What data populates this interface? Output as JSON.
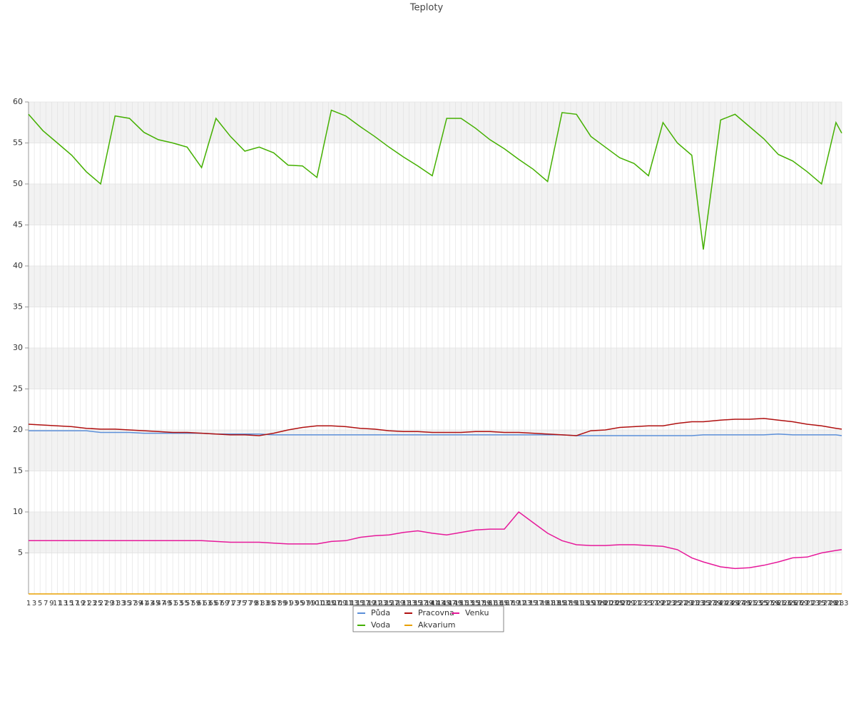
{
  "chart_data": {
    "type": "line",
    "title": "Teploty",
    "x": [
      1,
      6,
      11,
      16,
      21,
      26,
      31,
      36,
      41,
      46,
      51,
      56,
      61,
      66,
      71,
      76,
      81,
      86,
      91,
      96,
      101,
      106,
      111,
      116,
      121,
      126,
      131,
      136,
      141,
      146,
      151,
      156,
      161,
      166,
      171,
      176,
      181,
      186,
      191,
      196,
      201,
      206,
      211,
      216,
      221,
      226,
      231,
      235,
      241,
      246,
      251,
      256,
      261,
      266,
      271,
      276,
      281,
      283
    ],
    "series": [
      {
        "name": "Půda",
        "color": "#5b8fd9",
        "values": [
          19.9,
          19.9,
          19.9,
          19.9,
          19.9,
          19.7,
          19.7,
          19.7,
          19.6,
          19.6,
          19.6,
          19.6,
          19.6,
          19.5,
          19.5,
          19.5,
          19.5,
          19.4,
          19.4,
          19.4,
          19.4,
          19.4,
          19.4,
          19.4,
          19.4,
          19.4,
          19.4,
          19.4,
          19.4,
          19.4,
          19.4,
          19.4,
          19.4,
          19.4,
          19.4,
          19.4,
          19.4,
          19.4,
          19.3,
          19.3,
          19.3,
          19.3,
          19.3,
          19.3,
          19.3,
          19.3,
          19.3,
          19.4,
          19.4,
          19.4,
          19.4,
          19.4,
          19.5,
          19.4,
          19.4,
          19.4,
          19.4,
          19.3
        ]
      },
      {
        "name": "Voda",
        "color": "#44b000",
        "values": [
          58.5,
          56.5,
          55,
          53.5,
          51.5,
          50,
          58.3,
          58,
          56.3,
          55.4,
          55,
          54.5,
          52,
          58,
          55.8,
          54,
          54.5,
          53.8,
          52.3,
          52.2,
          50.8,
          59,
          58.3,
          57,
          55.8,
          54.5,
          53.3,
          52.2,
          51,
          58,
          58,
          56.8,
          55.4,
          54.3,
          53,
          51.8,
          50.3,
          58.7,
          58.5,
          55.8,
          54.5,
          53.2,
          52.5,
          51,
          57.5,
          55,
          53.5,
          42,
          57.8,
          58.5,
          57,
          55.5,
          53.6,
          52.8,
          51.5,
          50,
          57.5,
          56.2
        ]
      },
      {
        "name": "Pracovna",
        "color": "#b01010",
        "values": [
          20.7,
          20.6,
          20.5,
          20.4,
          20.2,
          20.1,
          20.1,
          20,
          19.9,
          19.8,
          19.7,
          19.7,
          19.6,
          19.5,
          19.4,
          19.4,
          19.3,
          19.6,
          20,
          20.3,
          20.5,
          20.5,
          20.4,
          20.2,
          20.1,
          19.9,
          19.8,
          19.8,
          19.7,
          19.7,
          19.7,
          19.8,
          19.8,
          19.7,
          19.7,
          19.6,
          19.5,
          19.4,
          19.3,
          19.9,
          20,
          20.3,
          20.4,
          20.5,
          20.5,
          20.8,
          21,
          21,
          21.2,
          21.3,
          21.3,
          21.4,
          21.2,
          21,
          20.7,
          20.5,
          20.2,
          20.1
        ]
      },
      {
        "name": "Akvarium",
        "color": "#e8a000",
        "values": [
          0,
          0,
          0,
          0,
          0,
          0,
          0,
          0,
          0,
          0,
          0,
          0,
          0,
          0,
          0,
          0,
          0,
          0,
          0,
          0,
          0,
          0,
          0,
          0,
          0,
          0,
          0,
          0,
          0,
          0,
          0,
          0,
          0,
          0,
          0,
          0,
          0,
          0,
          0,
          0,
          0,
          0,
          0,
          0,
          0,
          0,
          0,
          0,
          0,
          0,
          0,
          0,
          0,
          0,
          0,
          0,
          0,
          0
        ]
      },
      {
        "name": "Venku",
        "color": "#e6199a",
        "values": [
          6.5,
          6.5,
          6.5,
          6.5,
          6.5,
          6.5,
          6.5,
          6.5,
          6.5,
          6.5,
          6.5,
          6.5,
          6.5,
          6.4,
          6.3,
          6.3,
          6.3,
          6.2,
          6.1,
          6.1,
          6.1,
          6.4,
          6.5,
          6.9,
          7.1,
          7.2,
          7.5,
          7.7,
          7.4,
          7.2,
          7.5,
          7.8,
          7.9,
          7.9,
          10,
          8.7,
          7.4,
          6.5,
          6.0,
          5.9,
          5.9,
          6,
          6,
          5.9,
          5.8,
          5.4,
          4.4,
          3.9,
          3.3,
          3.1,
          3.2,
          3.5,
          3.9,
          4.4,
          4.5,
          5,
          5.3,
          5.4
        ]
      }
    ],
    "xlim": [
      1,
      283
    ],
    "xticks": [
      1,
      3,
      5,
      7,
      9,
      11,
      13,
      15,
      17,
      19,
      21,
      23,
      25,
      27,
      29,
      31,
      33,
      35,
      37,
      39,
      41,
      43,
      45,
      47,
      49,
      51,
      53,
      55,
      57,
      59,
      61,
      63,
      65,
      67,
      69,
      71,
      73,
      75,
      77,
      79,
      81,
      83,
      85,
      87,
      89,
      91,
      93,
      95,
      97,
      99,
      101,
      103,
      105,
      107,
      109,
      111,
      113,
      115,
      117,
      119,
      121,
      123,
      125,
      127,
      129,
      131,
      133,
      135,
      137,
      139,
      141,
      143,
      145,
      147,
      149,
      151,
      153,
      155,
      157,
      159,
      161,
      163,
      165,
      167,
      169,
      171,
      173,
      175,
      177,
      179,
      181,
      183,
      185,
      187,
      189,
      191,
      193,
      195,
      197,
      199,
      201,
      203,
      205,
      207,
      209,
      211,
      213,
      215,
      217,
      219,
      221,
      223,
      225,
      227,
      229,
      231,
      233,
      235,
      237,
      239,
      241,
      243,
      245,
      247,
      249,
      251,
      253,
      255,
      257,
      259,
      261,
      263,
      265,
      267,
      269,
      271,
      273,
      275,
      277,
      279,
      281,
      283
    ],
    "ylim": [
      0,
      60
    ],
    "yticks": [
      5,
      10,
      15,
      20,
      25,
      30,
      35,
      40,
      45,
      50,
      55,
      60
    ],
    "grid": true
  }
}
